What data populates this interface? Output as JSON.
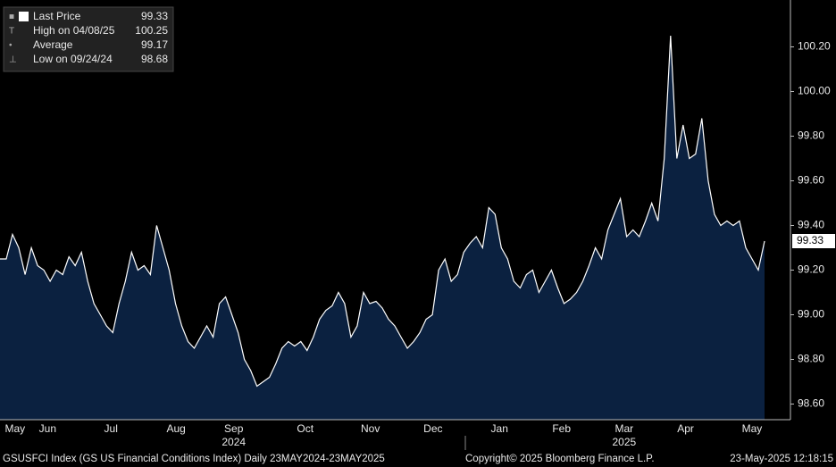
{
  "chart_data": {
    "type": "area",
    "series": [
      {
        "name": "Last Price",
        "color": "#ffffff",
        "fill": "#0b2140",
        "values": [
          99.25,
          99.25,
          99.36,
          99.3,
          99.18,
          99.3,
          99.22,
          99.2,
          99.15,
          99.2,
          99.18,
          99.26,
          99.22,
          99.28,
          99.15,
          99.05,
          99.0,
          98.95,
          98.92,
          99.05,
          99.15,
          99.28,
          99.2,
          99.22,
          99.18,
          99.4,
          99.3,
          99.2,
          99.05,
          98.95,
          98.88,
          98.85,
          98.9,
          98.95,
          98.9,
          99.05,
          99.08,
          99.0,
          98.92,
          98.8,
          98.75,
          98.68,
          98.7,
          98.72,
          98.78,
          98.85,
          98.88,
          98.86,
          98.88,
          98.84,
          98.9,
          98.98,
          99.02,
          99.04,
          99.1,
          99.05,
          98.9,
          98.95,
          99.1,
          99.05,
          99.06,
          99.03,
          98.98,
          98.95,
          98.9,
          98.85,
          98.88,
          98.92,
          98.98,
          99.0,
          99.2,
          99.25,
          99.15,
          99.18,
          99.28,
          99.32,
          99.35,
          99.3,
          99.48,
          99.45,
          99.3,
          99.25,
          99.15,
          99.12,
          99.18,
          99.2,
          99.1,
          99.15,
          99.2,
          99.12,
          99.05,
          99.07,
          99.1,
          99.15,
          99.22,
          99.3,
          99.25,
          99.38,
          99.45,
          99.52,
          99.35,
          99.38,
          99.35,
          99.42,
          99.5,
          99.42,
          99.7,
          100.25,
          99.7,
          99.85,
          99.7,
          99.72,
          99.88,
          99.6,
          99.45,
          99.4,
          99.42,
          99.4,
          99.42,
          99.3,
          99.25,
          99.2,
          99.33
        ]
      }
    ],
    "xlim": [
      0,
      122
    ],
    "xticks": [
      {
        "value": 2.4,
        "label": "May"
      },
      {
        "value": 7.6,
        "label": "Jun"
      },
      {
        "value": 17.7,
        "label": "Jul"
      },
      {
        "value": 28.1,
        "label": "Aug"
      },
      {
        "value": 37.3,
        "label": "Sep"
      },
      {
        "value": 48.7,
        "label": "Oct"
      },
      {
        "value": 59.1,
        "label": "Nov"
      },
      {
        "value": 69.1,
        "label": "Dec"
      },
      {
        "value": 79.7,
        "label": "Jan"
      },
      {
        "value": 89.6,
        "label": "Feb"
      },
      {
        "value": 99.6,
        "label": "Mar"
      },
      {
        "value": 109.4,
        "label": "Apr"
      },
      {
        "value": 120,
        "label": "May"
      }
    ],
    "year_labels": [
      {
        "value": 37.3,
        "label": "2024"
      },
      {
        "value": 99.6,
        "label": "2025"
      }
    ],
    "ylim": [
      98.53,
      100.41
    ],
    "yticks": [
      {
        "value": 98.6,
        "label": "98.60"
      },
      {
        "value": 98.8,
        "label": "98.80"
      },
      {
        "value": 99.0,
        "label": "99.00"
      },
      {
        "value": 99.2,
        "label": "99.20"
      },
      {
        "value": 99.4,
        "label": "99.40"
      },
      {
        "value": 99.6,
        "label": "99.60"
      },
      {
        "value": 99.8,
        "label": "99.80"
      },
      {
        "value": 100.0,
        "label": "100.00"
      },
      {
        "value": 100.2,
        "label": "100.20"
      }
    ],
    "legend": [
      {
        "label": "Last Price",
        "value": 99.33
      },
      {
        "label": "High on 04/08/25",
        "value": 100.25
      },
      {
        "label": "Average",
        "value": 99.17
      },
      {
        "label": "Low on 09/24/24",
        "value": 98.68
      }
    ],
    "footer": [
      "GSUSFCI Index (GS US Financial Conditions Index)  Daily 23MAY2024-23MAY2025",
      "Copyright© 2025 Bloomberg Finance L.P.",
      "23-May-2025 12:18:15"
    ]
  }
}
